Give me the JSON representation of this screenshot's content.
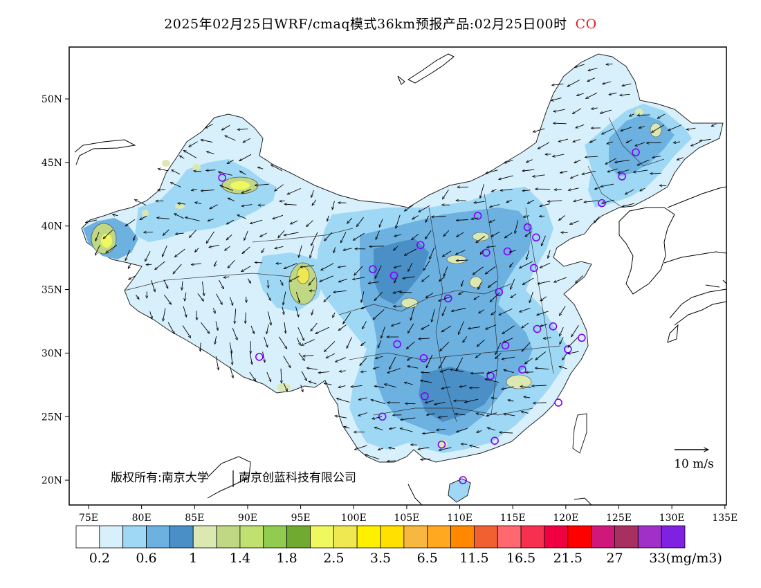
{
  "title": {
    "text": "2025年02月25日WRF/cmaq模式36km预报产品:02月25日00时",
    "species": "CO",
    "species_color": "#e02020"
  },
  "axes": {
    "lon_ticks": [
      "75E",
      "80E",
      "85E",
      "90E",
      "95E",
      "100E",
      "105E",
      "110E",
      "115E",
      "120E",
      "125E",
      "130E",
      "135E"
    ],
    "lat_ticks": [
      "50N",
      "45N",
      "40N",
      "35N",
      "30N",
      "25N",
      "20N"
    ],
    "lon_range": [
      73,
      135
    ],
    "lat_range": [
      18,
      54
    ]
  },
  "wind_scale": {
    "label": "10 m/s"
  },
  "copyright": {
    "left": "版权所有:南京大学",
    "right": "南京创蓝科技有限公司"
  },
  "colorbar": {
    "colors": [
      "#ffffff",
      "#d8f0fb",
      "#9ed8f5",
      "#6cb1e0",
      "#4a8fc6",
      "#dce8b2",
      "#c0d884",
      "#c0e070",
      "#90cc50",
      "#70aa30",
      "#f0f860",
      "#f0e850",
      "#fff000",
      "#ffe000",
      "#f8b840",
      "#ffa820",
      "#ff8800",
      "#f06030",
      "#ff6870",
      "#f83050",
      "#f00040",
      "#ff0000",
      "#d0187a",
      "#a83060",
      "#a030c8",
      "#8020e0"
    ],
    "labels": [
      "0.2",
      "0.6",
      "1",
      "1.4",
      "1.8",
      "2.5",
      "3.5",
      "6.5",
      "11.5",
      "16.5",
      "21.5",
      "27",
      "33(mg/m3)"
    ],
    "unit": "mg/m3"
  },
  "stations": [
    {
      "lon": 87.6,
      "lat": 43.8
    },
    {
      "lon": 91.1,
      "lat": 29.7
    },
    {
      "lon": 101.8,
      "lat": 36.6
    },
    {
      "lon": 103.8,
      "lat": 36.1
    },
    {
      "lon": 106.3,
      "lat": 38.5
    },
    {
      "lon": 111.7,
      "lat": 40.8
    },
    {
      "lon": 112.5,
      "lat": 37.9
    },
    {
      "lon": 114.5,
      "lat": 38.0
    },
    {
      "lon": 116.4,
      "lat": 39.9
    },
    {
      "lon": 117.2,
      "lat": 39.1
    },
    {
      "lon": 117.0,
      "lat": 36.7
    },
    {
      "lon": 113.7,
      "lat": 34.8
    },
    {
      "lon": 108.9,
      "lat": 34.3
    },
    {
      "lon": 104.1,
      "lat": 30.7
    },
    {
      "lon": 106.6,
      "lat": 29.6
    },
    {
      "lon": 102.7,
      "lat": 25.0
    },
    {
      "lon": 106.7,
      "lat": 26.6
    },
    {
      "lon": 108.3,
      "lat": 22.8
    },
    {
      "lon": 113.3,
      "lat": 23.1
    },
    {
      "lon": 110.3,
      "lat": 20.0
    },
    {
      "lon": 112.9,
      "lat": 28.2
    },
    {
      "lon": 114.3,
      "lat": 30.6
    },
    {
      "lon": 115.9,
      "lat": 28.7
    },
    {
      "lon": 117.3,
      "lat": 31.9
    },
    {
      "lon": 118.8,
      "lat": 32.1
    },
    {
      "lon": 121.5,
      "lat": 31.2
    },
    {
      "lon": 120.2,
      "lat": 30.3
    },
    {
      "lon": 119.3,
      "lat": 26.1
    },
    {
      "lon": 123.4,
      "lat": 41.8
    },
    {
      "lon": 125.3,
      "lat": 43.9
    },
    {
      "lon": 126.6,
      "lat": 45.8
    }
  ]
}
